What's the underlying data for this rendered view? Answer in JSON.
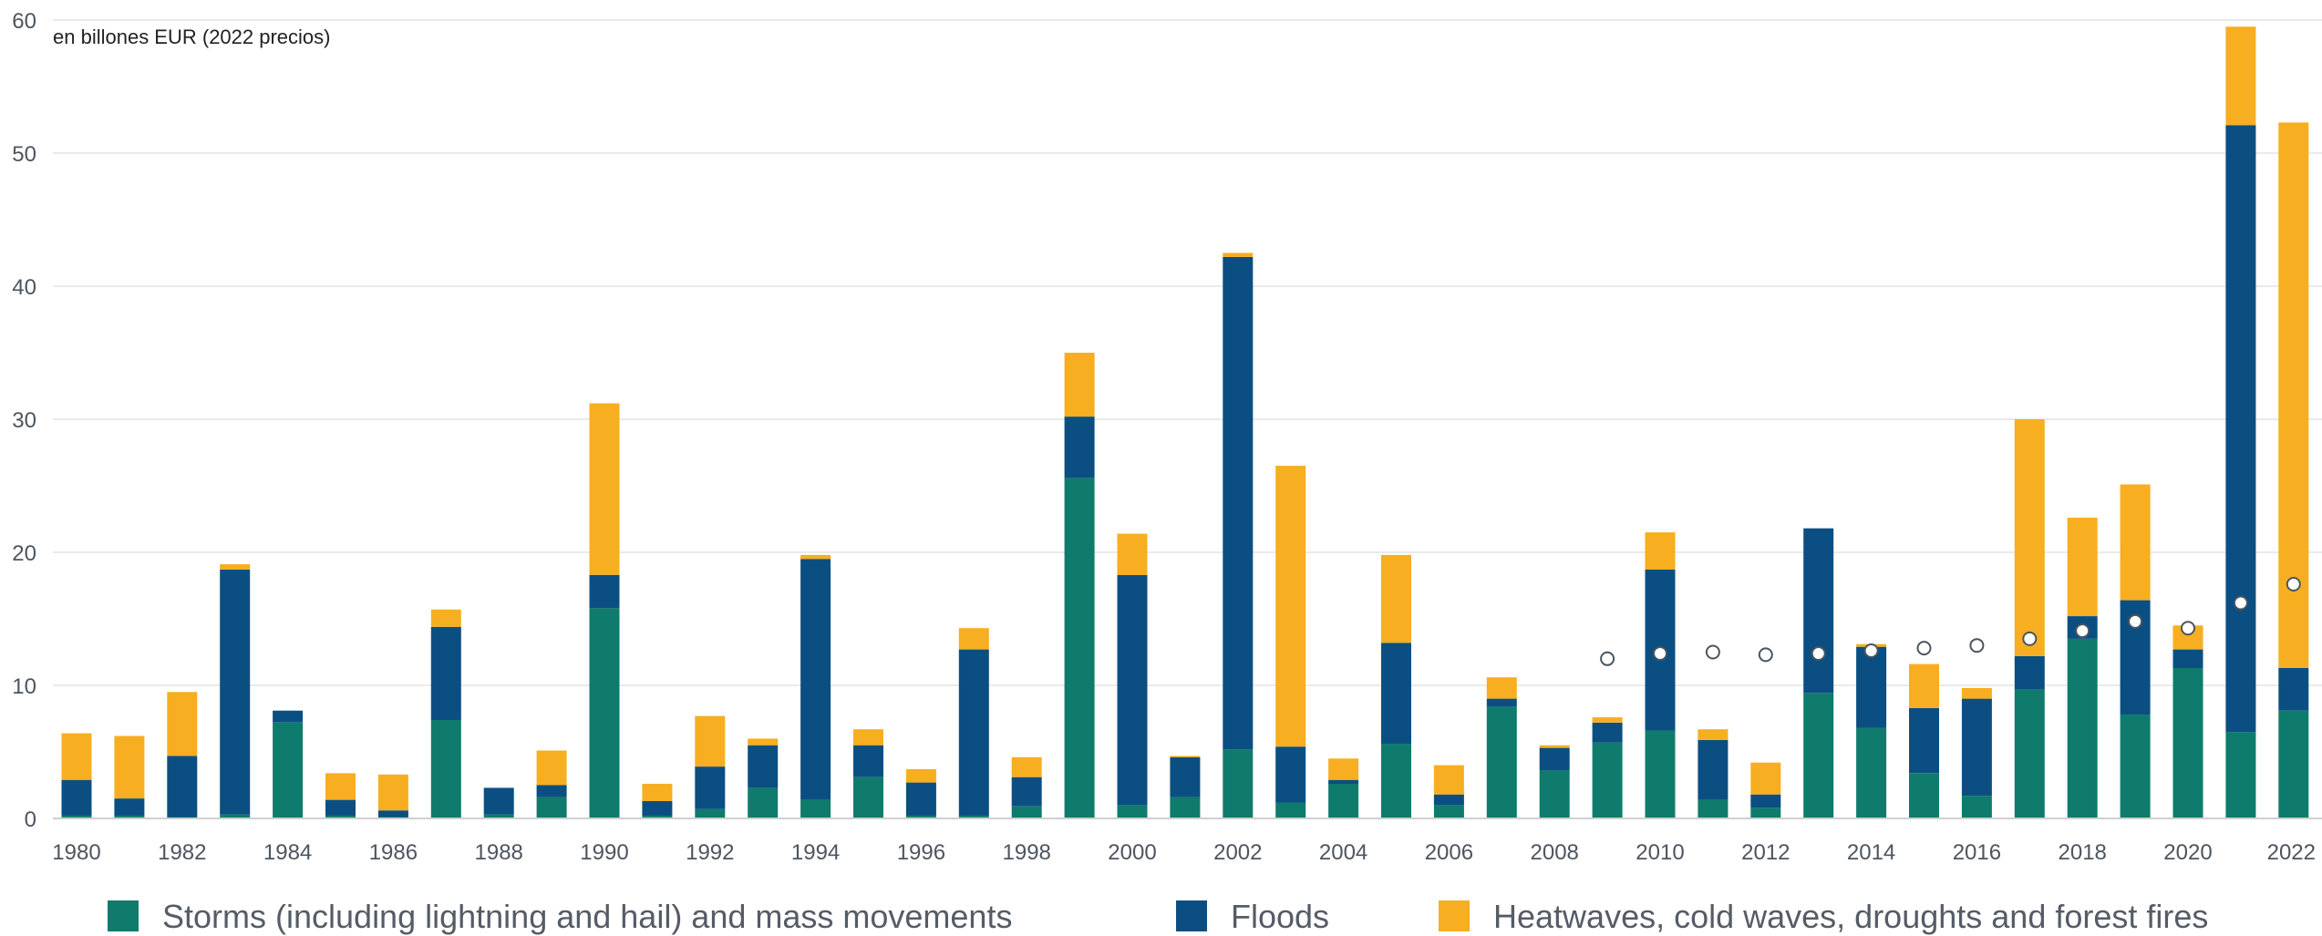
{
  "chart_data": {
    "type": "bar",
    "stacked": true,
    "unit_label": "en billones EUR (2022 precios)",
    "categories": [
      "1980",
      "1981",
      "1982",
      "1983",
      "1984",
      "1985",
      "1986",
      "1987",
      "1988",
      "1989",
      "1990",
      "1991",
      "1992",
      "1993",
      "1994",
      "1995",
      "1996",
      "1997",
      "1998",
      "1999",
      "2000",
      "2001",
      "2002",
      "2003",
      "2004",
      "2005",
      "2006",
      "2007",
      "2008",
      "2009",
      "2010",
      "2011",
      "2012",
      "2013",
      "2014",
      "2015",
      "2016",
      "2017",
      "2018",
      "2019",
      "2020",
      "2021",
      "2022"
    ],
    "x_tick_labels": [
      "1980",
      "1982",
      "1984",
      "1986",
      "1988",
      "1990",
      "1992",
      "1994",
      "1996",
      "1998",
      "2000",
      "2002",
      "2004",
      "2006",
      "2008",
      "2010",
      "2012",
      "2014",
      "2016",
      "2018",
      "2020",
      "2022"
    ],
    "y_tick_labels": [
      "0",
      "10",
      "20",
      "30",
      "40",
      "50",
      "60"
    ],
    "ylim": [
      0,
      60
    ],
    "grid": true,
    "legend_position": "bottom",
    "series": [
      {
        "name": "Storms (including lightning and hail) and mass movements",
        "color": "#0f7b6c",
        "values": [
          0.2,
          0.2,
          0.1,
          0.3,
          7.2,
          0.2,
          0.1,
          7.4,
          0.3,
          1.6,
          15.8,
          0.2,
          0.7,
          2.3,
          1.4,
          3.1,
          0.2,
          0.2,
          0.9,
          25.6,
          1.0,
          1.6,
          5.2,
          1.2,
          2.6,
          5.6,
          1.0,
          8.4,
          3.6,
          5.7,
          6.6,
          1.4,
          0.8,
          9.4,
          6.8,
          3.4,
          1.7,
          9.7,
          13.5,
          7.8,
          11.3,
          6.5,
          8.1
        ]
      },
      {
        "name": "Floods",
        "color": "#0b4f82",
        "values": [
          2.7,
          1.3,
          4.6,
          18.4,
          0.9,
          1.2,
          0.5,
          7.0,
          2.0,
          0.9,
          2.5,
          1.1,
          3.2,
          3.2,
          18.1,
          2.4,
          2.5,
          12.5,
          2.2,
          4.6,
          17.3,
          3.0,
          37.0,
          4.2,
          0.3,
          7.6,
          0.8,
          0.6,
          1.7,
          1.5,
          12.1,
          4.5,
          1.0,
          12.4,
          6.1,
          4.9,
          7.3,
          2.5,
          1.7,
          8.6,
          1.4,
          45.6,
          3.2
        ]
      },
      {
        "name": "Heatwaves, cold waves, droughts and forest fires",
        "color": "#f7ae20",
        "values": [
          3.5,
          4.7,
          4.8,
          0.4,
          0.0,
          2.0,
          2.7,
          1.3,
          0.0,
          2.6,
          12.9,
          1.3,
          3.8,
          0.5,
          0.3,
          1.2,
          1.0,
          1.6,
          1.5,
          4.8,
          3.1,
          0.1,
          0.3,
          21.1,
          1.6,
          6.6,
          2.2,
          1.6,
          0.2,
          0.4,
          2.8,
          0.8,
          2.4,
          0.0,
          0.2,
          3.3,
          0.8,
          17.8,
          7.4,
          8.7,
          1.8,
          7.4,
          41.0
        ]
      }
    ],
    "markers": {
      "style": "open-circle",
      "years": [
        "2009",
        "2010",
        "2011",
        "2012",
        "2013",
        "2014",
        "2015",
        "2016",
        "2017",
        "2018",
        "2019",
        "2020",
        "2021",
        "2022"
      ],
      "values": [
        12.0,
        12.4,
        12.5,
        12.3,
        12.4,
        12.6,
        12.8,
        13.0,
        13.5,
        14.1,
        14.8,
        14.3,
        16.2,
        17.6
      ]
    },
    "colors": {
      "storms": "#0f7b6c",
      "floods": "#0b4f82",
      "heat": "#f7ae20",
      "grid": "#e3e3e3",
      "axis": "#cfcfcf"
    }
  }
}
